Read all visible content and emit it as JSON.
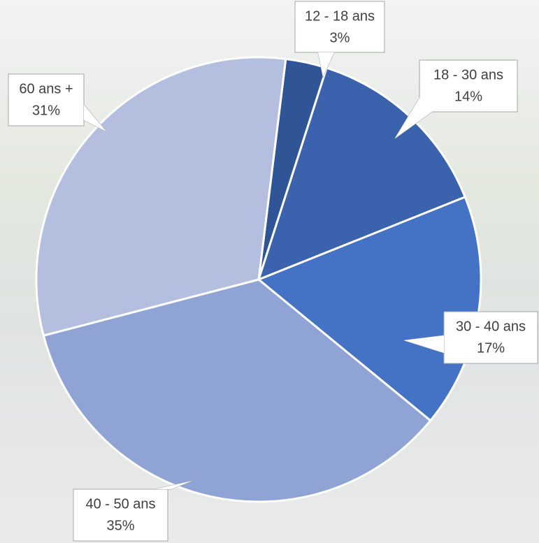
{
  "chart_data": {
    "type": "pie",
    "categories": [
      "12 - 18 ans",
      "18 - 30 ans",
      "30 - 40 ans",
      "40 - 50 ans",
      "60 ans +"
    ],
    "values": [
      3,
      14,
      17,
      35,
      31
    ],
    "value_labels": [
      "3%",
      "14%",
      "17%",
      "35%",
      "31%"
    ],
    "colors": [
      "#2f5597",
      "#3a62ad",
      "#4472c4",
      "#8fa3d4",
      "#b4bfe0"
    ]
  }
}
